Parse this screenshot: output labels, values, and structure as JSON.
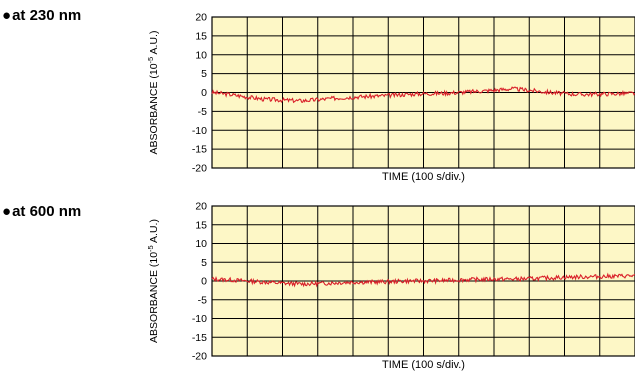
{
  "chart_data": [
    {
      "type": "line",
      "panel_label": "at 230 nm",
      "xlabel": "TIME (100 s/div.)",
      "ylabel_main": "ABSORBANCE (10",
      "ylabel_exp": "-5",
      "ylabel_tail": " A.U.)",
      "ylim": [
        -20,
        20
      ],
      "yticks": [
        20,
        15,
        10,
        5,
        0,
        -5,
        -10,
        -15,
        -20
      ],
      "xlim": [
        0,
        1200
      ],
      "grid": true,
      "colors": {
        "background": "#fdf7c6",
        "grid": "#000000",
        "series": "#d9202a"
      },
      "series": [
        {
          "x": [
            0,
            50,
            100,
            150,
            200,
            250,
            300,
            350,
            400,
            450,
            500,
            550,
            600,
            650,
            700,
            750,
            800,
            850,
            900,
            950,
            1000,
            1050,
            1100,
            1150,
            1200
          ],
          "y": [
            0,
            -0.5,
            -1.2,
            -1.8,
            -2.0,
            -2.2,
            -1.9,
            -1.5,
            -1.2,
            -1.0,
            -0.8,
            -0.5,
            -0.3,
            -0.2,
            0,
            0.3,
            0.6,
            1.0,
            0.6,
            0.1,
            -0.3,
            -0.5,
            -0.4,
            -0.3,
            -0.2
          ]
        }
      ]
    },
    {
      "type": "line",
      "panel_label": "at 600 nm",
      "xlabel": "TIME (100 s/div.)",
      "ylabel_main": "ABSORBANCE (10",
      "ylabel_exp": "-5",
      "ylabel_tail": " A.U.)",
      "ylim": [
        -20,
        20
      ],
      "yticks": [
        20,
        15,
        10,
        5,
        0,
        -5,
        -10,
        -15,
        -20
      ],
      "xlim": [
        0,
        1200
      ],
      "grid": true,
      "colors": {
        "background": "#fdf7c6",
        "grid": "#000000",
        "series": "#d9202a"
      },
      "series": [
        {
          "x": [
            0,
            50,
            100,
            150,
            200,
            250,
            300,
            350,
            400,
            450,
            500,
            550,
            600,
            650,
            700,
            750,
            800,
            850,
            900,
            950,
            1000,
            1050,
            1100,
            1150,
            1200
          ],
          "y": [
            0.5,
            0.3,
            0,
            -0.3,
            -0.6,
            -0.8,
            -0.7,
            -0.5,
            -0.3,
            -0.3,
            -0.2,
            0,
            0,
            0.1,
            0.3,
            0.4,
            0.5,
            0.5,
            0.6,
            0.8,
            1.0,
            1.1,
            1.2,
            1.3,
            1.4
          ]
        }
      ]
    }
  ]
}
